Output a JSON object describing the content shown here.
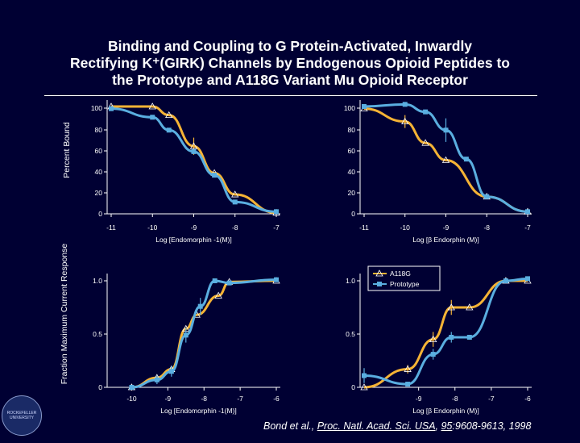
{
  "title": {
    "line1": "Binding and Coupling to G Protein-Activated, Inwardly",
    "line2": "Rectifying K⁺(GIRK) Channels by Endogenous Opioid Peptides to",
    "line3": "the Prototype and A118G Variant Mu Opioid Receptor"
  },
  "y_labels": {
    "top": "Percent Bound",
    "bottom": "Fraction Maximum Current Response"
  },
  "legend": {
    "a118g": "A118G",
    "prototype": "Prototype"
  },
  "colors": {
    "background": "#000033",
    "a118g": "#f5b335",
    "prototype": "#5aaee0",
    "axis": "#ffffff"
  },
  "citation": {
    "authors": "Bond et al., ",
    "journal": "Proc. Natl. Acad. Sci. USA",
    "sep": ", ",
    "volume": "95",
    "pages": ":9608-9613, 1998"
  },
  "chart_data": [
    {
      "type": "line",
      "panel": "top-left",
      "xlabel": "Log [Endomorphin -1(M)]",
      "ylabel": "Percent Bound",
      "xlim": [
        -11,
        -7
      ],
      "ylim": [
        0,
        100
      ],
      "x_ticks": [
        "-11",
        "-10",
        "-9",
        "-8",
        "-7"
      ],
      "y_ticks": [
        "0",
        "20",
        "40",
        "60",
        "80",
        "100"
      ],
      "series": [
        {
          "name": "A118G",
          "x": [
            -11,
            -10,
            -9.6,
            -9,
            -8.5,
            -8,
            -7
          ],
          "y": [
            100,
            100,
            92,
            63,
            38,
            18,
            1
          ],
          "err": [
            0,
            0,
            0,
            8,
            0,
            0,
            0
          ]
        },
        {
          "name": "Prototype",
          "x": [
            -11,
            -10,
            -9.6,
            -9,
            -8.5,
            -8,
            -7
          ],
          "y": [
            98,
            90,
            78,
            58,
            36,
            11,
            2
          ],
          "err": [
            0,
            0,
            0,
            0,
            0,
            0,
            0
          ]
        }
      ],
      "labels": [
        "top",
        "bottom"
      ],
      "curve_fit": true
    },
    {
      "type": "line",
      "panel": "top-right",
      "xlabel": "Log [β Endorphin (M)]",
      "ylabel": "Percent Bound",
      "xlim": [
        -11,
        -7
      ],
      "ylim": [
        0,
        100
      ],
      "x_ticks": [
        "-11",
        "-10",
        "-9",
        "-8",
        "-7"
      ],
      "y_ticks": [
        "0",
        "20",
        "40",
        "60",
        "80",
        "100"
      ],
      "series": [
        {
          "name": "A118G",
          "x": [
            -11,
            -10,
            -9.5,
            -9,
            -8,
            -7
          ],
          "y": [
            98,
            86,
            66,
            50,
            16,
            2
          ],
          "err": [
            0,
            6,
            0,
            0,
            0,
            0
          ]
        },
        {
          "name": "Prototype",
          "x": [
            -11,
            -10,
            -9.5,
            -9,
            -8.5,
            -8,
            -7
          ],
          "y": [
            100,
            102,
            95,
            78,
            51,
            16,
            2
          ],
          "err": [
            0,
            0,
            0,
            11,
            0,
            0,
            0
          ]
        }
      ],
      "curve_fit": true
    },
    {
      "type": "line",
      "panel": "bottom-left",
      "xlabel": "Log [Endomorphin -1(M)]",
      "ylabel": "Fraction Maximum Current Response",
      "xlim": [
        -10.3,
        -6
      ],
      "ylim": [
        0,
        1.1
      ],
      "x_ticks": [
        "-10",
        "-9",
        "-8",
        "-7",
        "-6"
      ],
      "y_ticks": [
        "0",
        "0.5",
        "1.0"
      ],
      "series": [
        {
          "name": "A118G",
          "x": [
            -10,
            -9.3,
            -8.9,
            -8.5,
            -8.2,
            -7.6,
            -7.3,
            -6
          ],
          "y": [
            0,
            0.09,
            0.17,
            0.55,
            0.68,
            0.86,
            0.99,
            1.0
          ],
          "err": [
            0,
            0,
            0,
            0,
            0,
            0,
            0,
            0
          ]
        },
        {
          "name": "Prototype",
          "x": [
            -10,
            -9.3,
            -8.9,
            -8.5,
            -8.1,
            -7.7,
            -7.3,
            -6
          ],
          "y": [
            0,
            0.07,
            0.15,
            0.49,
            0.76,
            1.0,
            0.98,
            1.01
          ],
          "err": [
            0,
            0.04,
            0.05,
            0.07,
            0.08,
            0,
            0,
            0
          ]
        }
      ],
      "curve_fit": true
    },
    {
      "type": "line",
      "panel": "bottom-right",
      "xlabel": "Log [β Endorphin (M)]",
      "ylabel": "Fraction Maximum Current Response",
      "xlim": [
        -10.5,
        -6
      ],
      "ylim": [
        0,
        1.1
      ],
      "x_ticks": [
        "-9",
        "-8",
        "-7",
        "-6"
      ],
      "y_ticks": [
        "0",
        "0.5",
        "1.0"
      ],
      "series": [
        {
          "name": "A118G",
          "x": [
            -10.5,
            -9.3,
            -8.6,
            -8.1,
            -7.6,
            -6.6,
            -6
          ],
          "y": [
            0,
            0.17,
            0.45,
            0.75,
            0.75,
            1.0,
            1.0
          ],
          "err": [
            0,
            0.04,
            0.07,
            0.07,
            0,
            0,
            0
          ]
        },
        {
          "name": "Prototype",
          "x": [
            -10.5,
            -9.3,
            -8.6,
            -8.1,
            -7.6,
            -6.6,
            -6
          ],
          "y": [
            0.11,
            0.03,
            0.31,
            0.47,
            0.47,
            1.0,
            1.02
          ],
          "err": [
            0.07,
            0,
            0.05,
            0.05,
            0,
            0,
            0
          ]
        }
      ],
      "legend_position": "top-right-inside",
      "curve_fit": true
    }
  ]
}
